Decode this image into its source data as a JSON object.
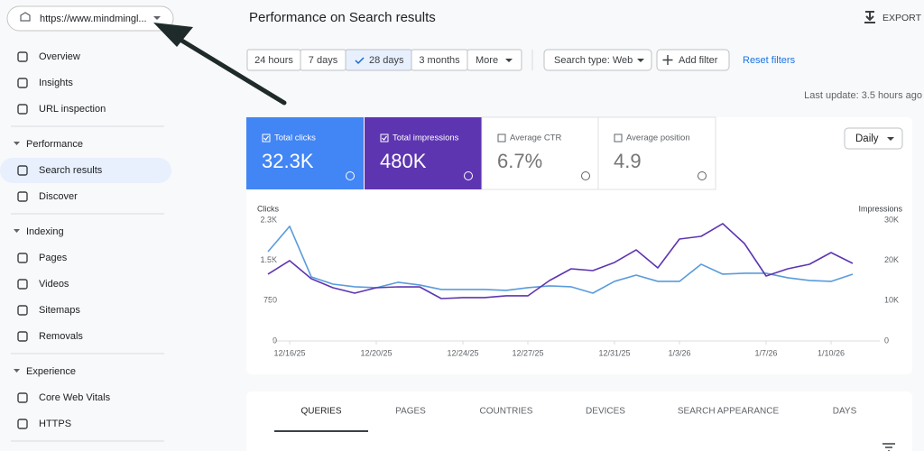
{
  "url_selector": "https://www.mindmingl...",
  "nav": [
    {
      "items": [
        "Overview",
        "Insights",
        "URL inspection"
      ]
    },
    {
      "heading": "Performance",
      "items": [
        "Search results",
        "Discover"
      ]
    },
    {
      "heading": "Indexing",
      "items": [
        "Pages",
        "Videos",
        "Sitemaps",
        "Removals"
      ]
    },
    {
      "heading": "Experience",
      "items": [
        "Core Web Vitals",
        "HTTPS"
      ]
    }
  ],
  "header": {
    "title": "Performance on Search results",
    "export": "EXPORT"
  },
  "time_ranges": [
    "24 hours",
    "7 days",
    "28 days",
    "3 months",
    "More"
  ],
  "filters": {
    "search_type": "Search type: Web",
    "add_filter": "Add filter",
    "reset": "Reset filters"
  },
  "last_update": "Last update: 3.5 hours ago",
  "metrics": [
    {
      "label": "Total clicks",
      "value": "32.3K"
    },
    {
      "label": "Total impressions",
      "value": "480K"
    },
    {
      "label": "Average CTR",
      "value": "6.7%"
    },
    {
      "label": "Average position",
      "value": "4.9"
    }
  ],
  "granularity": "Daily",
  "chart_data": {
    "type": "line",
    "ylabel": "Clicks",
    "y2label": "Impressions",
    "categories": [
      null,
      "12/16/25",
      null,
      null,
      null,
      "12/20/25",
      null,
      null,
      null,
      "12/24/25",
      null,
      null,
      "12/27/25",
      null,
      null,
      null,
      "12/31/25",
      null,
      null,
      "1/3/26",
      null,
      null,
      null,
      "1/7/26",
      null,
      null,
      "1/10/26",
      null
    ],
    "series": [
      {
        "name": "Clicks",
        "color": "#5a9bdc",
        "values": [
          1663,
          2134,
          1193,
          1058,
          1008,
          991,
          1092,
          1042,
          958,
          958,
          958,
          941,
          991,
          1025,
          1008,
          890,
          1109,
          1226,
          1109,
          1109,
          1428,
          1243,
          1260,
          1260,
          1176,
          1126,
          1109,
          1243
        ]
      },
      {
        "name": "Impressions",
        "color": "#5e35b1",
        "axis": "y2",
        "values": [
          16570,
          19930,
          15450,
          13210,
          11870,
          13210,
          13430,
          13430,
          10520,
          10750,
          10750,
          11200,
          11200,
          15000,
          17910,
          17460,
          19480,
          22610,
          18140,
          25300,
          25970,
          29110,
          24180,
          16120,
          17910,
          19030,
          21940,
          19260
        ]
      }
    ],
    "ylim": [
      0,
      2250
    ],
    "yticks": [
      0,
      750,
      {
        "value": 1500,
        "label": "1.5K"
      },
      {
        "value": 2250,
        "label": "2.3K"
      }
    ],
    "y2lim": [
      0,
      30000
    ],
    "y2ticks": [
      0,
      {
        "value": 10000,
        "label": "10K"
      },
      {
        "value": 20000,
        "label": "20K"
      },
      {
        "value": 30000,
        "label": "30K"
      }
    ],
    "grid": false
  },
  "tabs": [
    "QUERIES",
    "PAGES",
    "COUNTRIES",
    "DEVICES",
    "SEARCH APPEARANCE",
    "DAYS"
  ]
}
